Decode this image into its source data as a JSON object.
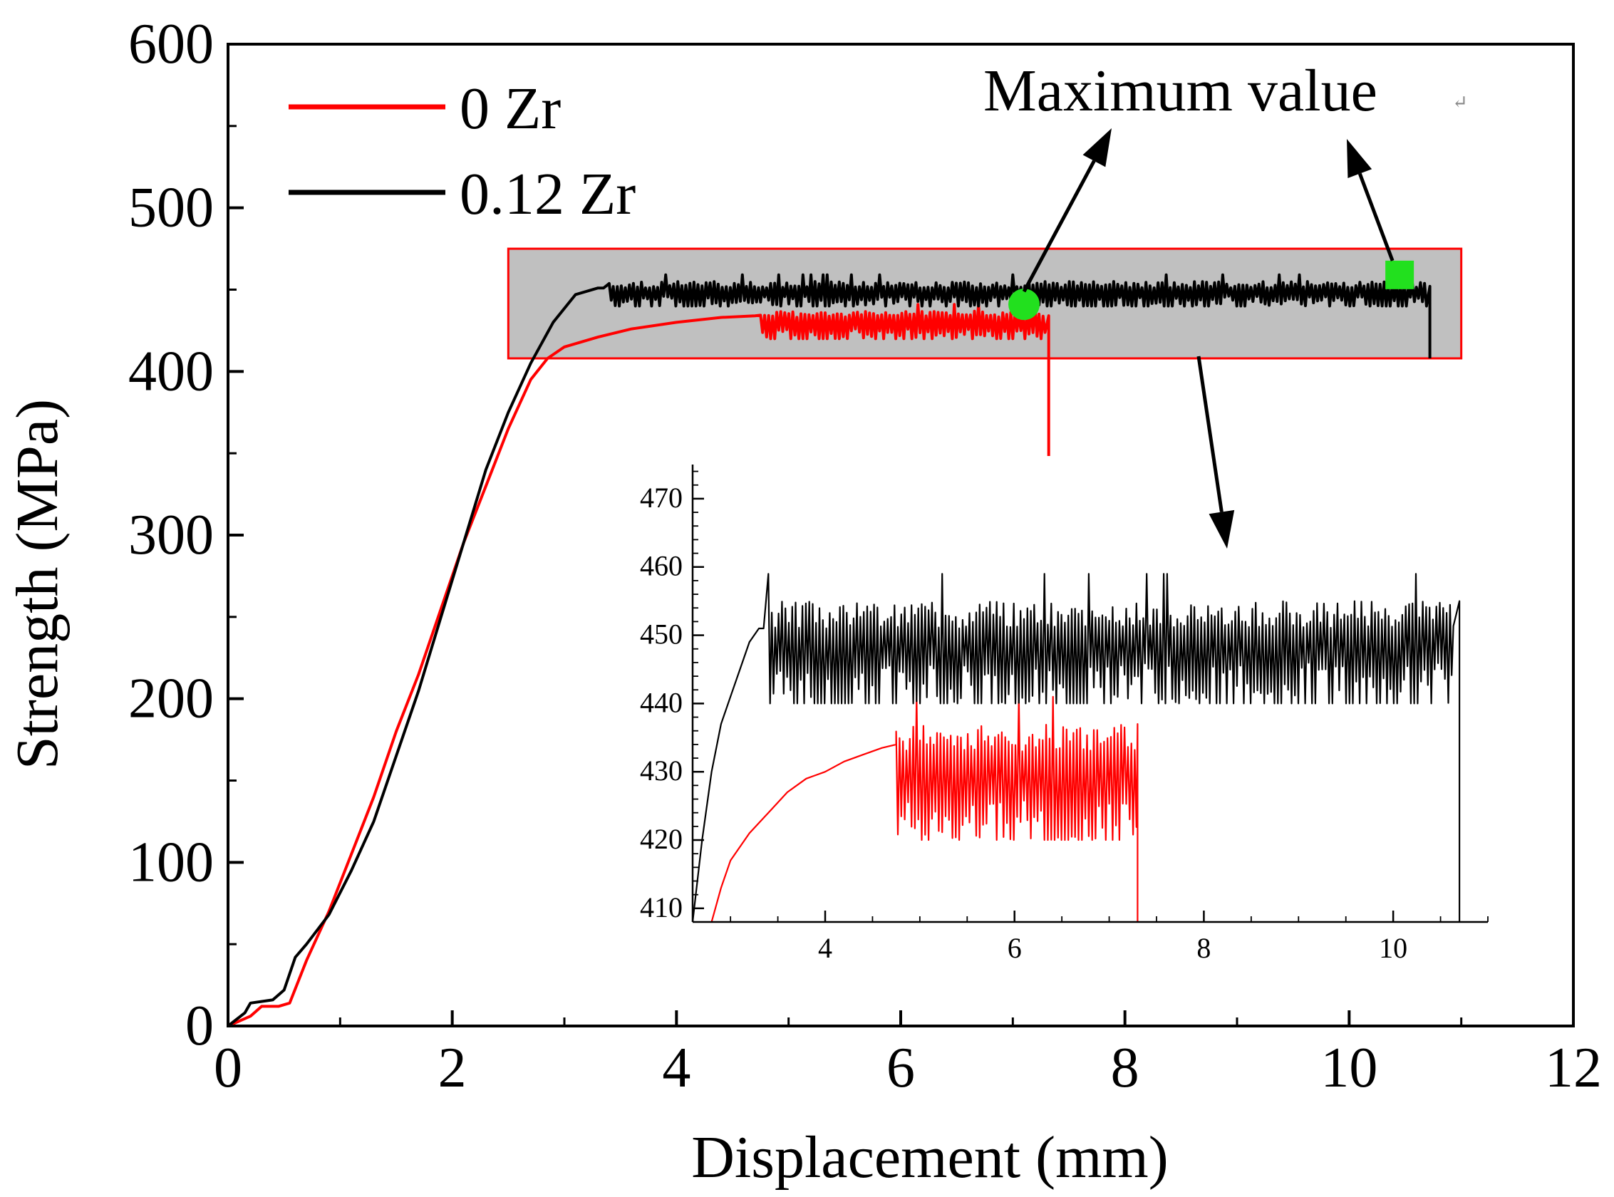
{
  "chart_data": [
    {
      "type": "line",
      "role": "main",
      "xlabel": "Displacement (mm)",
      "ylabel": "Strength (MPa)",
      "xlim": [
        0,
        12
      ],
      "ylim": [
        0,
        600
      ],
      "xticks": [
        0,
        2,
        4,
        6,
        8,
        10,
        12
      ],
      "yticks": [
        0,
        100,
        200,
        300,
        400,
        500,
        600
      ],
      "minor_ticks": true,
      "grid": false,
      "legend_position": "top-left",
      "series": [
        {
          "name": "0 Zr",
          "color": "#ff0000",
          "points": [
            [
              0,
              0
            ],
            [
              0.2,
              6
            ],
            [
              0.3,
              12
            ],
            [
              0.45,
              12
            ],
            [
              0.55,
              14
            ],
            [
              0.7,
              40
            ],
            [
              0.9,
              70
            ],
            [
              1.1,
              105
            ],
            [
              1.3,
              140
            ],
            [
              1.5,
              180
            ],
            [
              1.7,
              215
            ],
            [
              1.9,
              255
            ],
            [
              2.1,
              295
            ],
            [
              2.3,
              330
            ],
            [
              2.5,
              365
            ],
            [
              2.7,
              395
            ],
            [
              2.85,
              408
            ],
            [
              3.0,
              415
            ],
            [
              3.3,
              421
            ],
            [
              3.6,
              426
            ],
            [
              4.0,
              430
            ],
            [
              4.4,
              433
            ],
            [
              4.7,
              434
            ]
          ],
          "oscillation": {
            "x_range": [
              4.75,
              7.3
            ],
            "low": 420,
            "high": 437,
            "peak_high": 441
          },
          "drop": {
            "x": 7.32,
            "from": 434,
            "to": 310
          }
        },
        {
          "name": "0.12 Zr",
          "color": "#000000",
          "points": [
            [
              0,
              0
            ],
            [
              0.15,
              8
            ],
            [
              0.2,
              14
            ],
            [
              0.4,
              16
            ],
            [
              0.5,
              22
            ],
            [
              0.6,
              42
            ],
            [
              0.7,
              50
            ],
            [
              0.9,
              68
            ],
            [
              1.1,
              95
            ],
            [
              1.3,
              125
            ],
            [
              1.5,
              165
            ],
            [
              1.7,
              205
            ],
            [
              1.9,
              250
            ],
            [
              2.1,
              295
            ],
            [
              2.3,
              340
            ],
            [
              2.5,
              375
            ],
            [
              2.7,
              405
            ],
            [
              2.9,
              430
            ],
            [
              3.1,
              447
            ],
            [
              3.3,
              451
            ],
            [
              3.35,
              451
            ]
          ],
          "oscillation": {
            "x_range": [
              3.4,
              10.7
            ],
            "low": 440,
            "high": 455,
            "peak_high": 459
          },
          "drop": {
            "x": 10.72,
            "from": 452,
            "to": 408
          }
        }
      ],
      "markers": [
        {
          "shape": "circle",
          "x": 7.1,
          "y": 441,
          "color": "#22e01e"
        },
        {
          "shape": "square",
          "x": 10.45,
          "y": 459,
          "color": "#22e01e"
        }
      ],
      "highlight_region": {
        "x": [
          2.5,
          11.0
        ],
        "y": [
          408,
          475
        ],
        "fill": "#c0c0c0",
        "stroke": "#ff0000"
      },
      "annotations": [
        {
          "text": "Maximum value"
        }
      ]
    },
    {
      "type": "line",
      "role": "inset",
      "xlim": [
        2.6,
        11.0
      ],
      "ylim": [
        408,
        475
      ],
      "xticks": [
        4,
        6,
        8,
        10
      ],
      "yticks": [
        410,
        420,
        430,
        440,
        450,
        460,
        470
      ],
      "minor_ticks": true,
      "series": [
        {
          "name": "0 Zr",
          "color": "#ff0000",
          "points": [
            [
              2.8,
              408
            ],
            [
              2.9,
              413
            ],
            [
              3.0,
              417
            ],
            [
              3.2,
              421
            ],
            [
              3.4,
              424
            ],
            [
              3.6,
              427
            ],
            [
              3.8,
              429
            ],
            [
              4.0,
              430
            ],
            [
              4.2,
              431.5
            ],
            [
              4.4,
              432.5
            ],
            [
              4.6,
              433.5
            ],
            [
              4.75,
              434
            ]
          ],
          "oscillation": {
            "x_range": [
              4.75,
              7.3
            ],
            "low": 420,
            "high": 437,
            "peak_high": 441
          },
          "drop": {
            "x": 7.3,
            "to": 408
          }
        },
        {
          "name": "0.12 Zr",
          "color": "#000000",
          "points": [
            [
              2.6,
              408
            ],
            [
              2.7,
              420
            ],
            [
              2.8,
              430
            ],
            [
              2.9,
              437
            ],
            [
              3.0,
              441
            ],
            [
              3.1,
              445
            ],
            [
              3.2,
              449
            ],
            [
              3.3,
              451
            ],
            [
              3.35,
              451
            ]
          ],
          "oscillation": {
            "x_range": [
              3.4,
              10.65
            ],
            "low": 440,
            "high": 455,
            "peak_high": 459
          },
          "drop": {
            "x": 10.7,
            "to": 408
          }
        }
      ]
    }
  ]
}
